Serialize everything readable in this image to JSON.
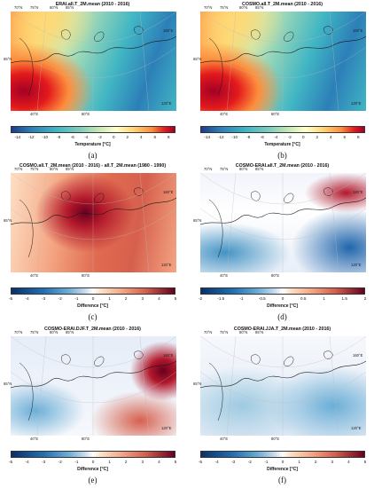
{
  "panels": [
    {
      "title": "ERAI.all.T_2M.mean (2010 - 2016)",
      "letter": "(a)",
      "cbar_label": "Temperature [°C]",
      "ticks": [
        "-14",
        "-12",
        "-10",
        "-8",
        "-6",
        "-4",
        "-2",
        "0",
        "2",
        "4",
        "6",
        "8"
      ],
      "scale": "temperature",
      "lat_labels": [
        "70°N",
        "75°N",
        "80°N",
        "85°N"
      ],
      "lon_labels": [
        "40°E",
        "80°E",
        "120°E",
        "160°E"
      ],
      "lat_side": [
        "65°N"
      ]
    },
    {
      "title": "COSMO.all.T_2M.mean (2010 - 2016)",
      "letter": "(b)",
      "cbar_label": "Temperature [°C]",
      "ticks": [
        "-14",
        "-12",
        "-10",
        "-8",
        "-6",
        "-4",
        "-2",
        "0",
        "2",
        "4",
        "6",
        "8"
      ],
      "scale": "temperature",
      "lat_labels": [
        "70°N",
        "75°N",
        "80°N",
        "85°N"
      ],
      "lon_labels": [
        "40°E",
        "80°E",
        "120°E",
        "160°E"
      ],
      "lat_side": [
        "65°N"
      ]
    },
    {
      "title": "COSMO.all.T_2M.mean (2010 - 2016) - all.T_2M.mean (1980 - 1990)",
      "letter": "(c)",
      "cbar_label": "Difference [°C]",
      "ticks": [
        "-5",
        "-4",
        "-3",
        "-2",
        "-1",
        "0",
        "1",
        "2",
        "3",
        "4",
        "5"
      ],
      "scale": "difference",
      "lat_labels": [
        "70°N",
        "75°N",
        "80°N",
        "85°N"
      ],
      "lon_labels": [
        "40°E",
        "80°E",
        "120°E",
        "160°E"
      ],
      "lat_side": [
        "65°N"
      ]
    },
    {
      "title": "COSMO-ERAI.all.T_2M.mean (2010 - 2016)",
      "letter": "(d)",
      "cbar_label": "Difference [°C]",
      "ticks": [
        "-2",
        "-1.5",
        "-1",
        "-0.5",
        "0",
        "0.5",
        "1",
        "1.5",
        "2"
      ],
      "scale": "difference",
      "lat_labels": [
        "70°N",
        "75°N",
        "80°N",
        "85°N"
      ],
      "lon_labels": [
        "40°E",
        "80°E",
        "120°E",
        "160°E"
      ],
      "lat_side": [
        "65°N"
      ]
    },
    {
      "title": "COSMO-ERAI.DJF.T_2M.mean (2010 - 2016)",
      "letter": "(e)",
      "cbar_label": "Difference [°C]",
      "ticks": [
        "-5",
        "-4",
        "-3",
        "-2",
        "-1",
        "0",
        "1",
        "2",
        "3",
        "4",
        "5"
      ],
      "scale": "difference",
      "lat_labels": [
        "70°N",
        "75°N",
        "80°N",
        "85°N"
      ],
      "lon_labels": [
        "40°E",
        "80°E",
        "120°E",
        "160°E"
      ],
      "lat_side": [
        "65°N"
      ]
    },
    {
      "title": "COSMO-ERAI.JJA.T_2M.mean (2010 - 2016)",
      "letter": "(f)",
      "cbar_label": "Difference [°C]",
      "ticks": [
        "-5",
        "-4",
        "-3",
        "-2",
        "-1",
        "0",
        "1",
        "2",
        "3",
        "4",
        "5"
      ],
      "scale": "difference",
      "lat_labels": [
        "70°N",
        "75°N",
        "80°N",
        "85°N"
      ],
      "lon_labels": [
        "40°E",
        "80°E",
        "120°E",
        "160°E"
      ],
      "lat_side": [
        "65°N"
      ]
    }
  ]
}
